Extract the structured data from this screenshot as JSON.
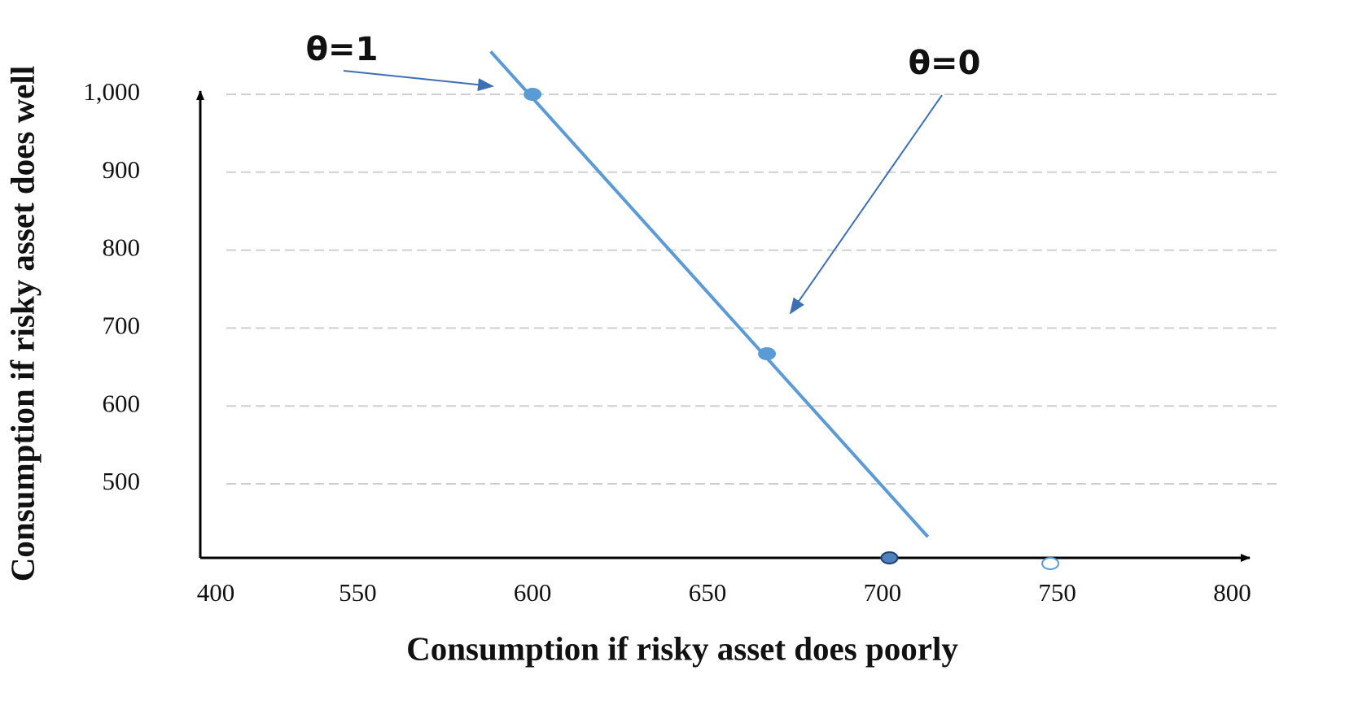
{
  "chart_data": {
    "type": "line",
    "x_label": "Consumption if  risky asset does poorly",
    "y_label": "Consumption if  risky asset does well",
    "xlim": [
      505,
      805
    ],
    "xticks": [
      550,
      600,
      650,
      700,
      750,
      800
    ],
    "x_origin_label": "400",
    "ylim": [
      405,
      1000
    ],
    "yticks": [
      500,
      600,
      700,
      800,
      900,
      {
        "value": 1000,
        "label": "1,000"
      }
    ],
    "grid": true,
    "series": [
      {
        "color": "#5b9bd5",
        "x": [
          588,
          713
        ],
        "values": [
          1055,
          432
        ]
      }
    ],
    "points": [
      {
        "color": "#5b9bd5",
        "x": [
          600,
          667
        ],
        "values": [
          1000,
          667
        ]
      }
    ],
    "axis_points": [
      {
        "color": "#4f81bd",
        "x": 702,
        "value": 405,
        "filled": true
      },
      {
        "color": "#5b9bd5",
        "x": 748,
        "value": 405,
        "filled": false
      }
    ],
    "annotations": [
      "θ=1",
      "θ=0"
    ]
  }
}
